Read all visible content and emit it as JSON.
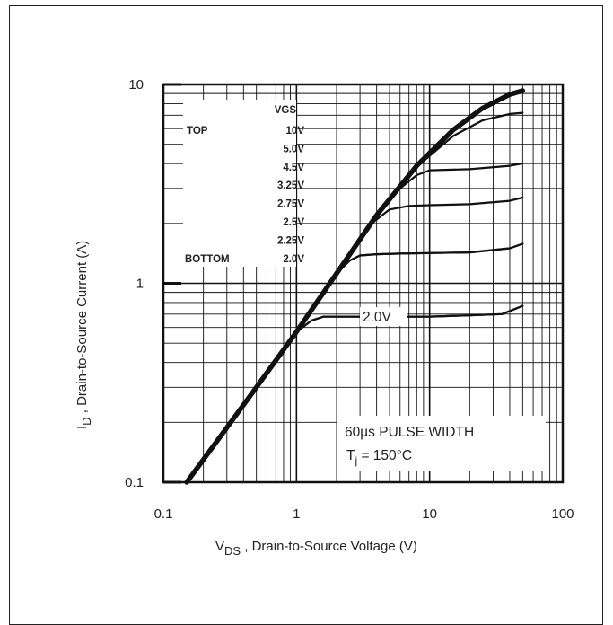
{
  "chart_data": {
    "type": "line",
    "x_scale": "log",
    "y_scale": "log",
    "xlim": [
      0.1,
      100
    ],
    "ylim": [
      0.1,
      10
    ],
    "grid": true,
    "x_ticks": [
      "0.1",
      "1",
      "10",
      "100"
    ],
    "y_ticks": [
      "0.1",
      "1",
      "10"
    ],
    "xlabel": {
      "main": "V",
      "sub": "DS",
      "rest": " , Drain-to-Source Voltage (V)"
    },
    "ylabel": {
      "main": "I",
      "sub": "D",
      "rest": " ,  Drain-to-Source Current  (A)"
    },
    "legend": {
      "header": "VGS",
      "top_label": "TOP",
      "bottom_label": "BOTTOM",
      "entries": [
        "10V",
        "5.0V",
        "4.5V",
        "3.25V",
        "2.75V",
        "2.5V",
        "2.25V",
        "2.0V"
      ],
      "placement": "top-left"
    },
    "curve_label": "2.0V",
    "annotation": {
      "line1": "60µs PULSE  WIDTH",
      "line2_pre": "T",
      "line2_sub": "j",
      "line2_post": " = 150°C"
    },
    "series": [
      {
        "name": "10V",
        "x": [
          0.15,
          0.5,
          1,
          2,
          4,
          8,
          15,
          25,
          40,
          50
        ],
        "y": [
          0.1,
          0.3,
          0.57,
          1.12,
          2.2,
          3.9,
          5.9,
          7.6,
          8.9,
          9.3
        ]
      },
      {
        "name": "5.0V",
        "x": [
          0.15,
          0.5,
          1,
          2,
          4,
          8,
          15,
          25,
          40,
          50
        ],
        "y": [
          0.1,
          0.3,
          0.57,
          1.12,
          2.2,
          3.85,
          5.5,
          6.6,
          7.1,
          7.2
        ]
      },
      {
        "name": "4.5V",
        "x": [
          0.15,
          0.5,
          1,
          2,
          4,
          6,
          8,
          10,
          20,
          40,
          50
        ],
        "y": [
          0.1,
          0.3,
          0.57,
          1.12,
          2.2,
          3.0,
          3.5,
          3.7,
          3.75,
          3.9,
          4.0
        ]
      },
      {
        "name": "3.25V",
        "x": [
          0.15,
          0.5,
          1,
          2,
          3.5,
          5,
          7,
          10,
          20,
          40,
          50
        ],
        "y": [
          0.1,
          0.3,
          0.57,
          1.12,
          1.95,
          2.35,
          2.45,
          2.47,
          2.5,
          2.6,
          2.7
        ]
      },
      {
        "name": "2.75V",
        "x": [
          0.15,
          0.5,
          1,
          2,
          2.5,
          3,
          4,
          6,
          10,
          20,
          40,
          50
        ],
        "y": [
          0.1,
          0.3,
          0.57,
          1.12,
          1.3,
          1.38,
          1.4,
          1.41,
          1.42,
          1.43,
          1.5,
          1.58
        ]
      },
      {
        "name": "2.5V",
        "x": [
          0.15,
          0.5,
          1,
          2,
          2.5,
          3,
          4,
          6,
          10,
          20,
          40,
          50
        ],
        "y": [
          0.1,
          0.3,
          0.57,
          1.12,
          1.3,
          1.38,
          1.4,
          1.41,
          1.42,
          1.43,
          1.5,
          1.58
        ]
      },
      {
        "name": "2.25V",
        "x": [
          0.15,
          0.5,
          1,
          1.3,
          1.6,
          2,
          4,
          10,
          20,
          35,
          50
        ],
        "y": [
          0.1,
          0.3,
          0.57,
          0.65,
          0.68,
          0.68,
          0.68,
          0.68,
          0.69,
          0.7,
          0.77
        ]
      },
      {
        "name": "2.0V",
        "x": [
          0.15,
          0.5,
          1,
          1.3,
          1.6,
          2,
          4,
          10,
          20,
          35,
          50
        ],
        "y": [
          0.1,
          0.3,
          0.57,
          0.65,
          0.68,
          0.68,
          0.68,
          0.68,
          0.69,
          0.7,
          0.77
        ]
      }
    ]
  }
}
